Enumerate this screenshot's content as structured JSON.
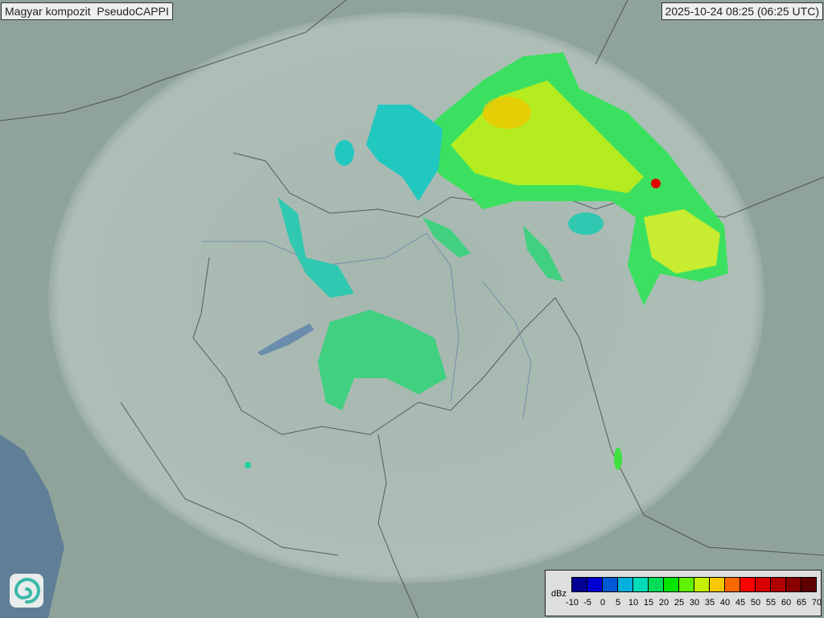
{
  "header": {
    "title": "Magyar kompozit  PseudoCAPPI",
    "timestamp": "2025-10-24 08:25 (06:25 UTC)"
  },
  "legend": {
    "unit": "dBz",
    "ticks": [
      "-10",
      "-5",
      "0",
      "5",
      "10",
      "15",
      "20",
      "25",
      "30",
      "35",
      "40",
      "45",
      "50",
      "55",
      "60",
      "65",
      "70"
    ],
    "colors": [
      "#000094",
      "#0000d4",
      "#0058d4",
      "#00b0dc",
      "#00dcb8",
      "#00dc58",
      "#00e400",
      "#60f000",
      "#c4f000",
      "#f8c800",
      "#f86800",
      "#ff0000",
      "#d80000",
      "#b00000",
      "#880000",
      "#600000"
    ]
  },
  "logo": {
    "icon": "swirl-logo-icon"
  }
}
